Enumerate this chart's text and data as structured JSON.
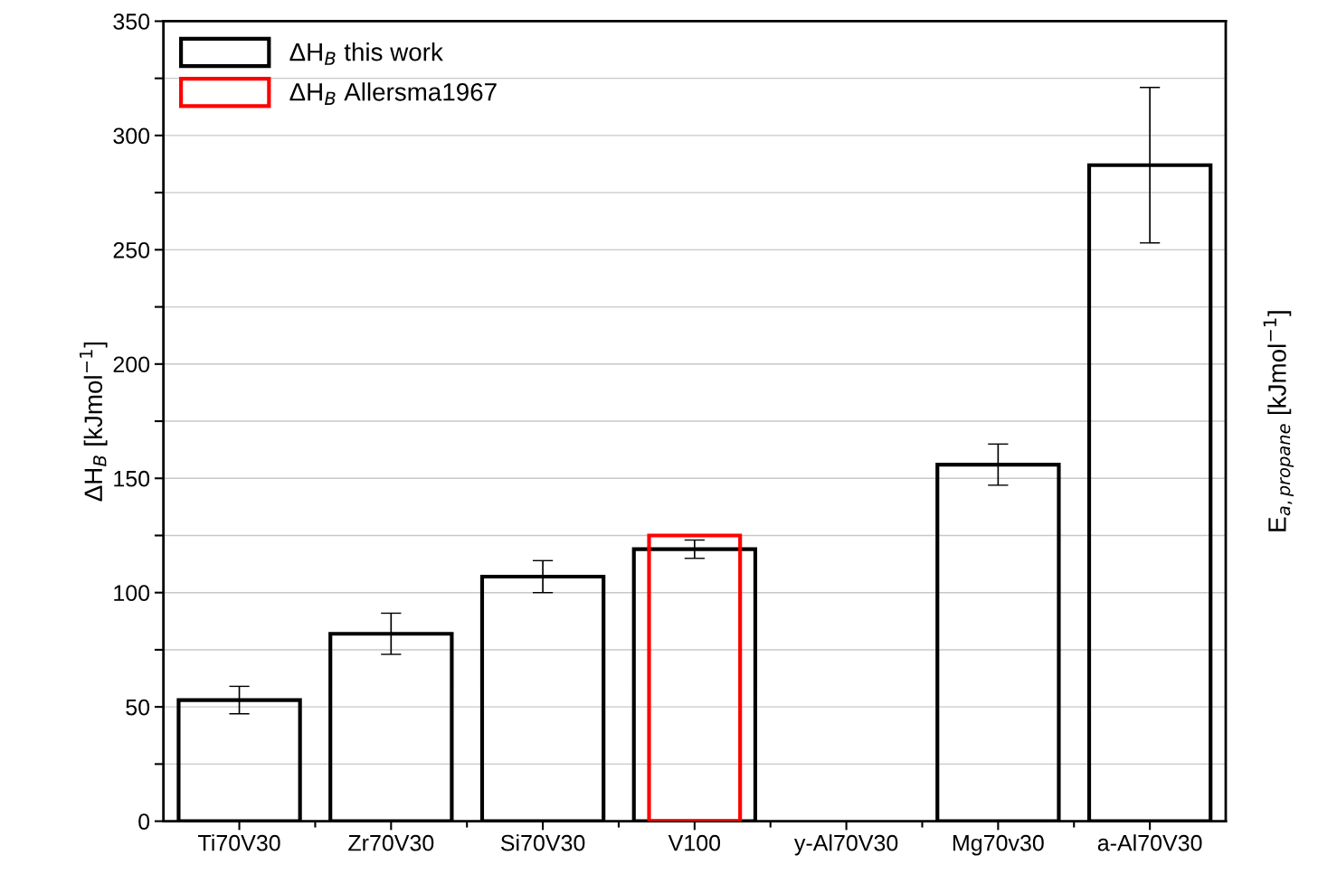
{
  "chart_data": {
    "type": "bar",
    "categories": [
      "Ti70V30",
      "Zr70V30",
      "Si70V30",
      "V100",
      "y-Al70V30",
      "Mg70v30",
      "a-Al70V30"
    ],
    "series": [
      {
        "name": "ΔH$_{B}$ this work",
        "color": "#000000",
        "values": [
          53,
          82,
          107,
          119,
          null,
          156,
          287
        ],
        "errors": [
          [
            47,
            59
          ],
          [
            73,
            91
          ],
          [
            100,
            114
          ],
          [
            115,
            123
          ],
          null,
          [
            147,
            165
          ],
          [
            253,
            321
          ]
        ]
      },
      {
        "name": "ΔH$_{B}$ Allersma1967",
        "color": "#ff0000",
        "values": [
          null,
          null,
          null,
          125,
          null,
          null,
          null
        ]
      }
    ],
    "ylabel": "ΔH$_{B}$ [kJmol$^{−1}$]",
    "y2label": "E$_{a,propane}$ [kJmol$^{−1}$]",
    "ylim": [
      0,
      350
    ],
    "yticks": [
      0,
      {
        "value": 25,
        "label": null
      },
      50,
      {
        "value": 75,
        "label": null
      },
      100,
      {
        "value": 125,
        "label": null
      },
      150,
      {
        "value": 175,
        "label": null
      },
      200,
      {
        "value": 225,
        "label": null
      },
      250,
      {
        "value": 275,
        "label": null
      },
      300,
      {
        "value": 325,
        "label": null
      },
      350
    ],
    "grid": "y",
    "legend": "top left"
  }
}
